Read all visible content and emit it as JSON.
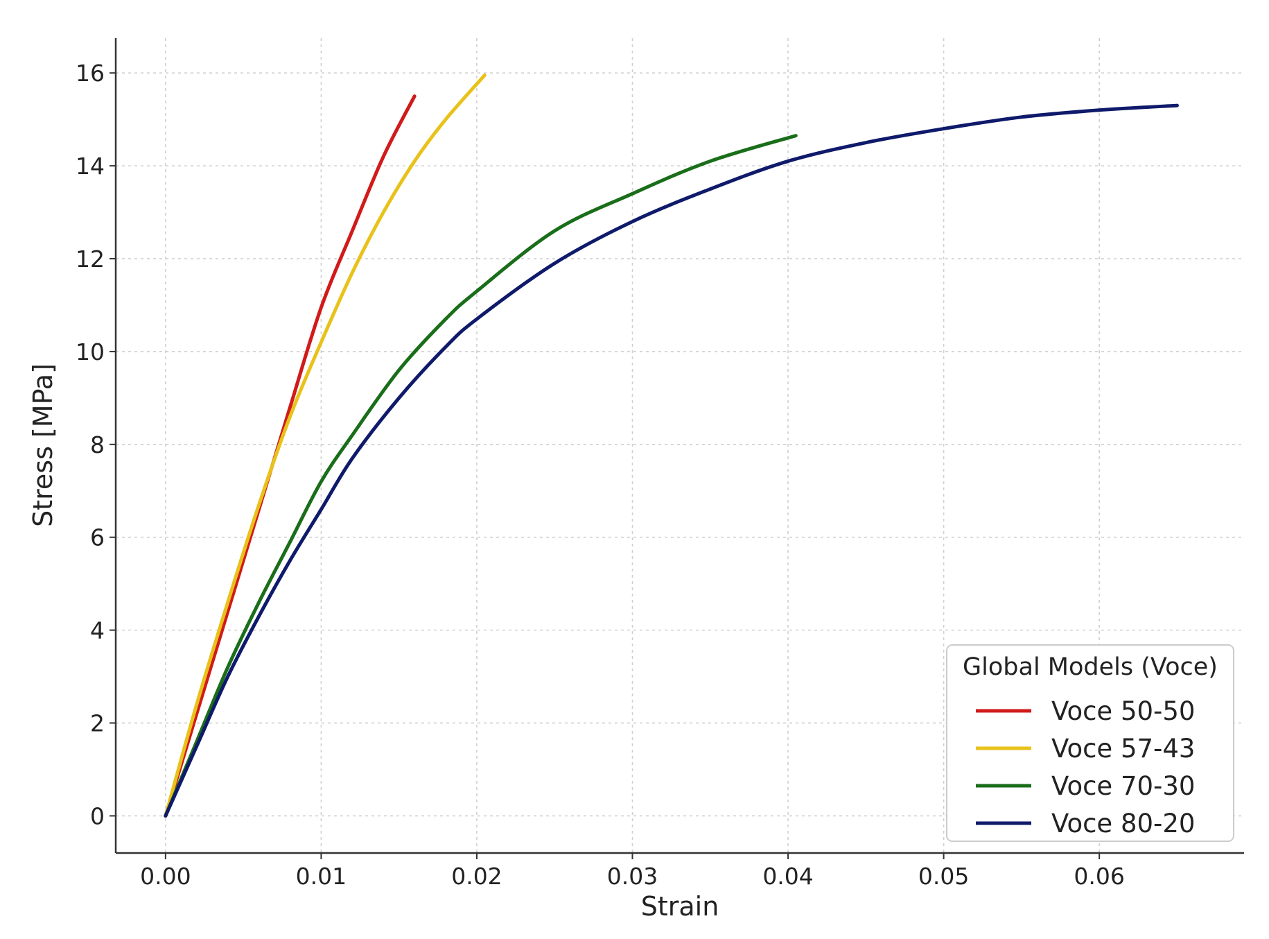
{
  "chart_data": {
    "type": "line",
    "title": "",
    "xlabel": "Strain",
    "ylabel": "Stress [MPa]",
    "xlim": [
      -0.0032,
      0.0693
    ],
    "ylim": [
      -0.8,
      16.75
    ],
    "xticks": [
      0.0,
      0.01,
      0.02,
      0.03,
      0.04,
      0.05,
      0.06
    ],
    "xtick_labels": [
      "0.00",
      "0.01",
      "0.02",
      "0.03",
      "0.04",
      "0.05",
      "0.06"
    ],
    "yticks": [
      0,
      2,
      4,
      6,
      8,
      10,
      12,
      14,
      16
    ],
    "ytick_labels": [
      "0",
      "2",
      "4",
      "6",
      "8",
      "10",
      "12",
      "14",
      "16"
    ],
    "grid": true,
    "legend": {
      "title": "Global Models (Voce)",
      "position": "lower-right"
    },
    "series": [
      {
        "name": "Voce 50-50",
        "color": "#d11a1a",
        "x": [
          0,
          0.002,
          0.004,
          0.006,
          0.008,
          0.01,
          0.012,
          0.014,
          0.016
        ],
        "y": [
          0,
          2.2,
          4.4,
          6.6,
          8.8,
          10.95,
          12.6,
          14.2,
          15.5
        ]
      },
      {
        "name": "Voce 57-43",
        "color": "#e8c21a",
        "x": [
          0,
          0.002,
          0.004,
          0.006,
          0.008,
          0.01,
          0.012,
          0.014,
          0.016,
          0.018,
          0.0205
        ],
        "y": [
          0,
          2.4,
          4.6,
          6.7,
          8.6,
          10.2,
          11.7,
          13.0,
          14.1,
          15.0,
          15.95
        ]
      },
      {
        "name": "Voce 70-30",
        "color": "#1a6e1a",
        "x": [
          0,
          0.002,
          0.004,
          0.006,
          0.008,
          0.01,
          0.012,
          0.015,
          0.018,
          0.02,
          0.025,
          0.03,
          0.035,
          0.0405
        ],
        "y": [
          0,
          1.6,
          3.2,
          4.6,
          5.9,
          7.2,
          8.2,
          9.6,
          10.7,
          11.3,
          12.6,
          13.4,
          14.1,
          14.65
        ]
      },
      {
        "name": "Voce 80-20",
        "color": "#0f1a6b",
        "x": [
          0,
          0.002,
          0.004,
          0.006,
          0.008,
          0.01,
          0.012,
          0.015,
          0.018,
          0.02,
          0.025,
          0.03,
          0.035,
          0.04,
          0.045,
          0.05,
          0.055,
          0.06,
          0.065
        ],
        "y": [
          0,
          1.5,
          3.0,
          4.3,
          5.5,
          6.6,
          7.7,
          9.0,
          10.1,
          10.7,
          11.9,
          12.8,
          13.5,
          14.1,
          14.5,
          14.8,
          15.05,
          15.2,
          15.3
        ]
      }
    ]
  }
}
